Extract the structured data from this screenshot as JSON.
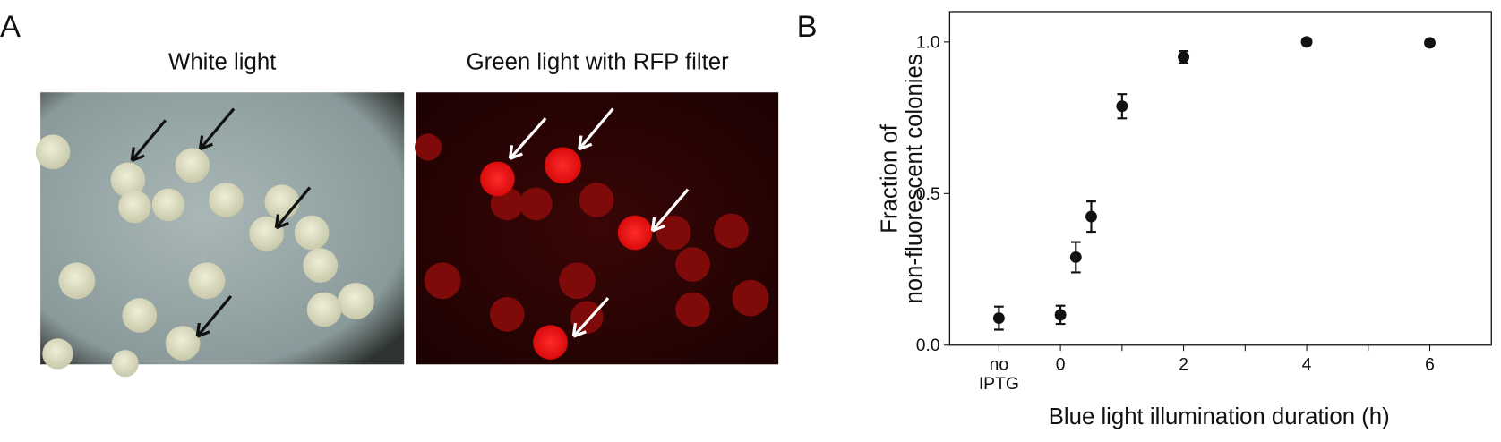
{
  "panel_a": {
    "label": "A",
    "images": [
      {
        "title": "White light"
      },
      {
        "title": "Green light with RFP filter"
      }
    ]
  },
  "panel_b": {
    "label": "B"
  },
  "chart_data": {
    "type": "scatter",
    "xlabel": "Blue light illumination duration (h)",
    "ylabel": [
      "Fraction of",
      "non-fluorescent colonies"
    ],
    "xlim": [
      -1.8,
      7
    ],
    "ylim": [
      0,
      1.1
    ],
    "xticks": [
      {
        "value": -1,
        "label": "no IPTG"
      },
      0,
      2,
      4,
      6
    ],
    "minor_xticks": [
      1,
      3,
      5
    ],
    "yticks": [
      {
        "value": 0,
        "label": "0.0"
      },
      {
        "value": 0.5,
        "label": "0.5"
      },
      {
        "value": 1,
        "label": "1.0"
      }
    ],
    "series": [
      {
        "color": "#111111",
        "x": [
          -1,
          0,
          0.25,
          0.5,
          1,
          2,
          4,
          6
        ],
        "values": [
          0.089,
          0.1,
          0.29,
          0.424,
          0.788,
          0.95,
          1.0,
          0.997
        ],
        "errors": [
          0.038,
          0.03,
          0.05,
          0.05,
          0.04,
          0.02,
          0,
          0.005
        ]
      }
    ]
  }
}
